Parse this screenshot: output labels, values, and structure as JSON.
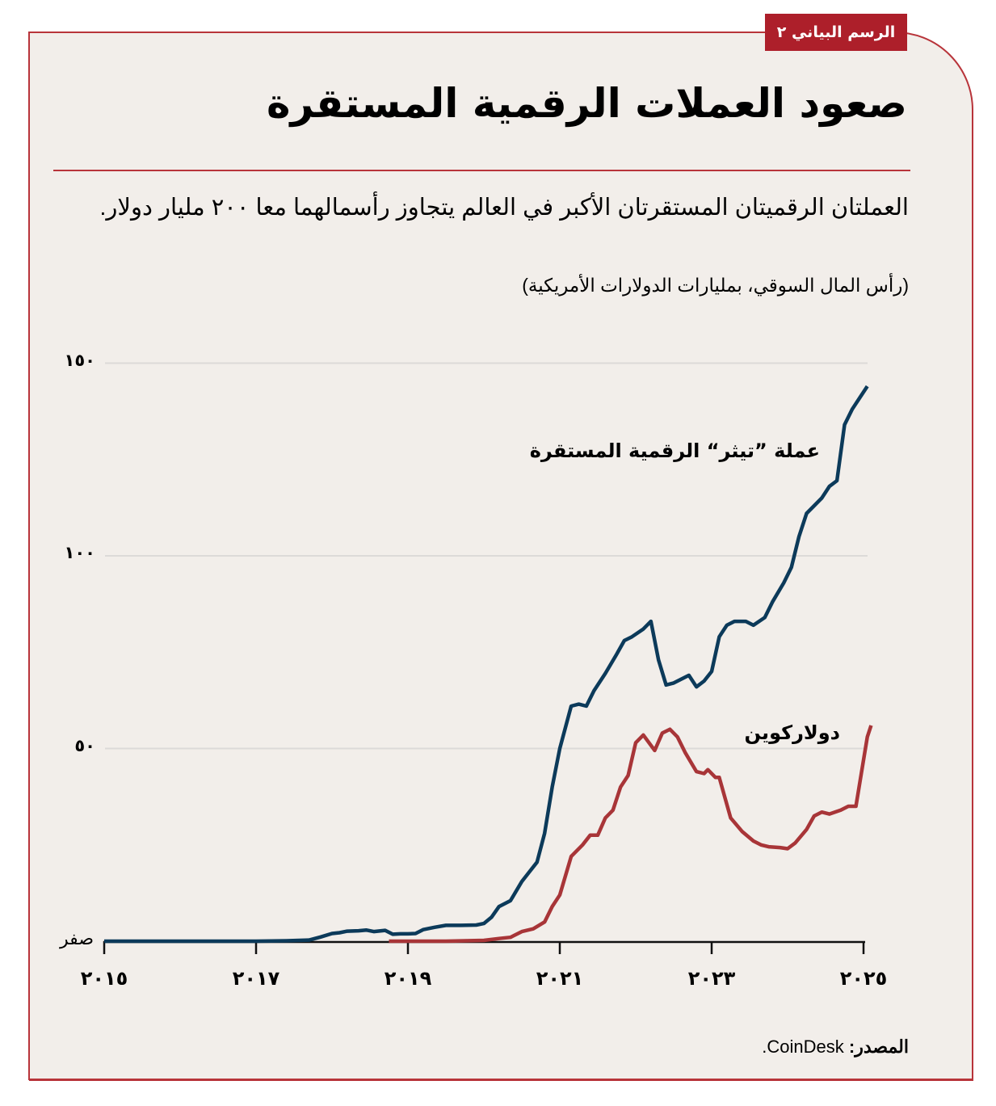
{
  "badge": {
    "label": "الرسم البياني ٢"
  },
  "title": "صعود العملات الرقمية المستقرة",
  "subtitle": "العملتان الرقميتان المستقرتان الأكبر في العالم يتجاوز رأسمالهما معا ٢٠٠ مليار دولار.",
  "units": "(رأس المال السوقي، بمليارات الدولارات الأمريكية)",
  "source": {
    "label": "المصدر:",
    "value": "CoinDesk."
  },
  "colors": {
    "background": "#f2eeea",
    "frame": "#b8343a",
    "badge": "#ad1f2a",
    "tether": "#0c3a5a",
    "usdc": "#a83538",
    "grid": "#dcdad8",
    "axis": "#111111"
  },
  "y_ticks": [
    {
      "value": 150,
      "label": "١٥٠"
    },
    {
      "value": 100,
      "label": "١٠٠"
    },
    {
      "value": 50,
      "label": "٥٠"
    },
    {
      "value": 0,
      "label": "صفر"
    }
  ],
  "x_ticks": [
    {
      "value": 2015,
      "label": "٢٠١٥"
    },
    {
      "value": 2017,
      "label": "٢٠١٧"
    },
    {
      "value": 2019,
      "label": "٢٠١٩"
    },
    {
      "value": 2021,
      "label": "٢٠٢١"
    },
    {
      "value": 2023,
      "label": "٢٠٢٣"
    },
    {
      "value": 2025,
      "label": "٢٠٢٥"
    }
  ],
  "series_labels": {
    "tether": "عملة ”تيثر“ الرقمية المستقرة",
    "usdc": "دولاركوين"
  },
  "chart_data": {
    "type": "line",
    "title": "صعود العملات الرقمية المستقرة",
    "subtitle": "العملتان الرقميتان المستقرتان الأكبر في العالم يتجاوز رأسمالهما معا ٢٠٠ مليار دولار.",
    "xlabel": "",
    "ylabel": "(رأس المال السوقي، بمليارات الدولارات الأمريكية)",
    "xlim": [
      2015,
      2025.1
    ],
    "ylim": [
      0,
      150
    ],
    "grid": true,
    "legend": "inline labels",
    "x_ticks": [
      2015,
      2017,
      2019,
      2021,
      2023,
      2025
    ],
    "y_ticks": [
      0,
      50,
      100,
      150
    ],
    "series": [
      {
        "name": "عملة ”تيثر“ الرقمية المستقرة",
        "color": "#0c3a5a",
        "points": [
          [
            2015.0,
            0
          ],
          [
            2017.0,
            0
          ],
          [
            2017.4,
            0.1
          ],
          [
            2017.7,
            0.3
          ],
          [
            2017.85,
            1.1
          ],
          [
            2018.0,
            2.0
          ],
          [
            2018.1,
            2.2
          ],
          [
            2018.2,
            2.6
          ],
          [
            2018.35,
            2.7
          ],
          [
            2018.45,
            2.9
          ],
          [
            2018.55,
            2.5
          ],
          [
            2018.7,
            2.8
          ],
          [
            2018.8,
            1.8
          ],
          [
            2018.9,
            1.9
          ],
          [
            2019.0,
            1.9
          ],
          [
            2019.1,
            2.0
          ],
          [
            2019.2,
            3.0
          ],
          [
            2019.35,
            3.6
          ],
          [
            2019.5,
            4.1
          ],
          [
            2019.7,
            4.1
          ],
          [
            2019.9,
            4.2
          ],
          [
            2020.0,
            4.6
          ],
          [
            2020.1,
            6.2
          ],
          [
            2020.2,
            9.0
          ],
          [
            2020.35,
            10.5
          ],
          [
            2020.5,
            15.5
          ],
          [
            2020.6,
            18.0
          ],
          [
            2020.7,
            20.5
          ],
          [
            2020.8,
            28.0
          ],
          [
            2020.9,
            40.0
          ],
          [
            2021.0,
            50.0
          ],
          [
            2021.15,
            61.0
          ],
          [
            2021.25,
            61.5
          ],
          [
            2021.35,
            61.0
          ],
          [
            2021.45,
            65.0
          ],
          [
            2021.6,
            69.5
          ],
          [
            2021.75,
            74.5
          ],
          [
            2021.85,
            78.0
          ],
          [
            2021.95,
            79.0
          ],
          [
            2022.1,
            81.0
          ],
          [
            2022.2,
            83.0
          ],
          [
            2022.3,
            73.0
          ],
          [
            2022.4,
            66.5
          ],
          [
            2022.5,
            67.0
          ],
          [
            2022.6,
            68.0
          ],
          [
            2022.7,
            69.0
          ],
          [
            2022.8,
            66.0
          ],
          [
            2022.9,
            67.5
          ],
          [
            2023.0,
            70.0
          ],
          [
            2023.1,
            79.0
          ],
          [
            2023.2,
            82.0
          ],
          [
            2023.3,
            83.0
          ],
          [
            2023.45,
            83.0
          ],
          [
            2023.55,
            82.0
          ],
          [
            2023.7,
            84.0
          ],
          [
            2023.8,
            88.0
          ],
          [
            2023.95,
            93.0
          ],
          [
            2024.05,
            97.0
          ],
          [
            2024.15,
            105.0
          ],
          [
            2024.25,
            111.0
          ],
          [
            2024.35,
            113.0
          ],
          [
            2024.45,
            115.0
          ],
          [
            2024.55,
            118.0
          ],
          [
            2024.65,
            119.5
          ],
          [
            2024.75,
            134.0
          ],
          [
            2024.85,
            138.0
          ],
          [
            2024.95,
            141.0
          ],
          [
            2025.05,
            144.0
          ]
        ]
      },
      {
        "name": "دولاركوين",
        "color": "#a83538",
        "points": [
          [
            2018.75,
            0
          ],
          [
            2019.0,
            0
          ],
          [
            2019.5,
            0
          ],
          [
            2020.0,
            0.2
          ],
          [
            2020.2,
            0.7
          ],
          [
            2020.35,
            1.0
          ],
          [
            2020.5,
            2.5
          ],
          [
            2020.65,
            3.2
          ],
          [
            2020.8,
            5.0
          ],
          [
            2020.9,
            9.0
          ],
          [
            2021.0,
            12.0
          ],
          [
            2021.15,
            22.0
          ],
          [
            2021.3,
            25.0
          ],
          [
            2021.4,
            27.5
          ],
          [
            2021.5,
            27.5
          ],
          [
            2021.6,
            32.0
          ],
          [
            2021.7,
            34.0
          ],
          [
            2021.8,
            40.0
          ],
          [
            2021.9,
            43.0
          ],
          [
            2022.0,
            51.5
          ],
          [
            2022.1,
            53.5
          ],
          [
            2022.25,
            49.5
          ],
          [
            2022.35,
            54.0
          ],
          [
            2022.45,
            55.0
          ],
          [
            2022.55,
            53.0
          ],
          [
            2022.65,
            49.0
          ],
          [
            2022.8,
            44.0
          ],
          [
            2022.9,
            43.5
          ],
          [
            2022.95,
            44.5
          ],
          [
            2023.05,
            42.5
          ],
          [
            2023.1,
            42.5
          ],
          [
            2023.25,
            32.0
          ],
          [
            2023.4,
            28.5
          ],
          [
            2023.55,
            26.0
          ],
          [
            2023.65,
            25.0
          ],
          [
            2023.75,
            24.5
          ],
          [
            2023.9,
            24.3
          ],
          [
            2024.0,
            24.0
          ],
          [
            2024.1,
            25.5
          ],
          [
            2024.25,
            29.0
          ],
          [
            2024.35,
            32.5
          ],
          [
            2024.45,
            33.5
          ],
          [
            2024.55,
            33.0
          ],
          [
            2024.7,
            34.0
          ],
          [
            2024.8,
            35.0
          ],
          [
            2024.9,
            35.0
          ],
          [
            2024.95,
            41.0
          ],
          [
            2025.0,
            47.0
          ],
          [
            2025.05,
            53.0
          ],
          [
            2025.1,
            56.0
          ]
        ]
      }
    ]
  }
}
